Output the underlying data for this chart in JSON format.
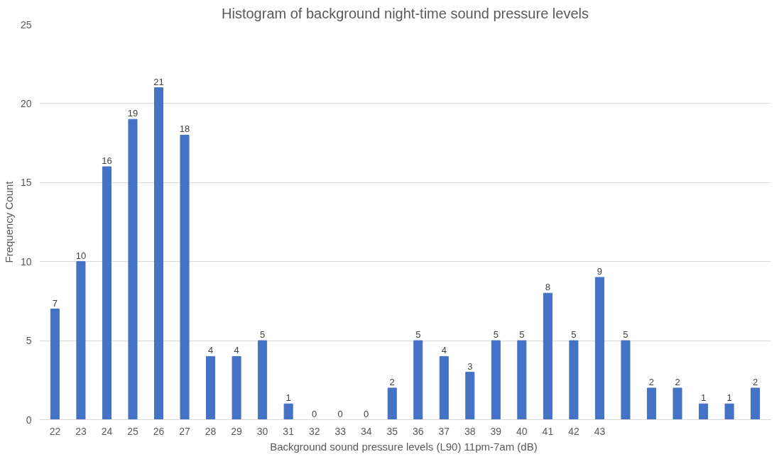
{
  "chart_data": {
    "type": "bar",
    "title": "Histogram of background night-time sound pressure levels",
    "xlabel": "Background sound pressure levels (L90) 11pm-7am  (dB)",
    "ylabel": "Frequency Count",
    "categories": [
      "22",
      "23",
      "24",
      "25",
      "26",
      "27",
      "28",
      "29",
      "30",
      "31",
      "32",
      "33",
      "34",
      "35",
      "36",
      "37",
      "38",
      "39",
      "40",
      "41",
      "42",
      "43",
      null,
      null,
      null,
      null,
      null,
      null
    ],
    "values": [
      7,
      10,
      16,
      19,
      21,
      18,
      4,
      4,
      5,
      1,
      0,
      0,
      0,
      2,
      5,
      4,
      3,
      5,
      5,
      8,
      5,
      9,
      5,
      2,
      2,
      1,
      1,
      2
    ],
    "color": "#4472c4",
    "ylim": [
      0,
      25
    ],
    "yticks": [
      0,
      5,
      10,
      15,
      20,
      25
    ],
    "grid": "y",
    "data_labels": true
  }
}
